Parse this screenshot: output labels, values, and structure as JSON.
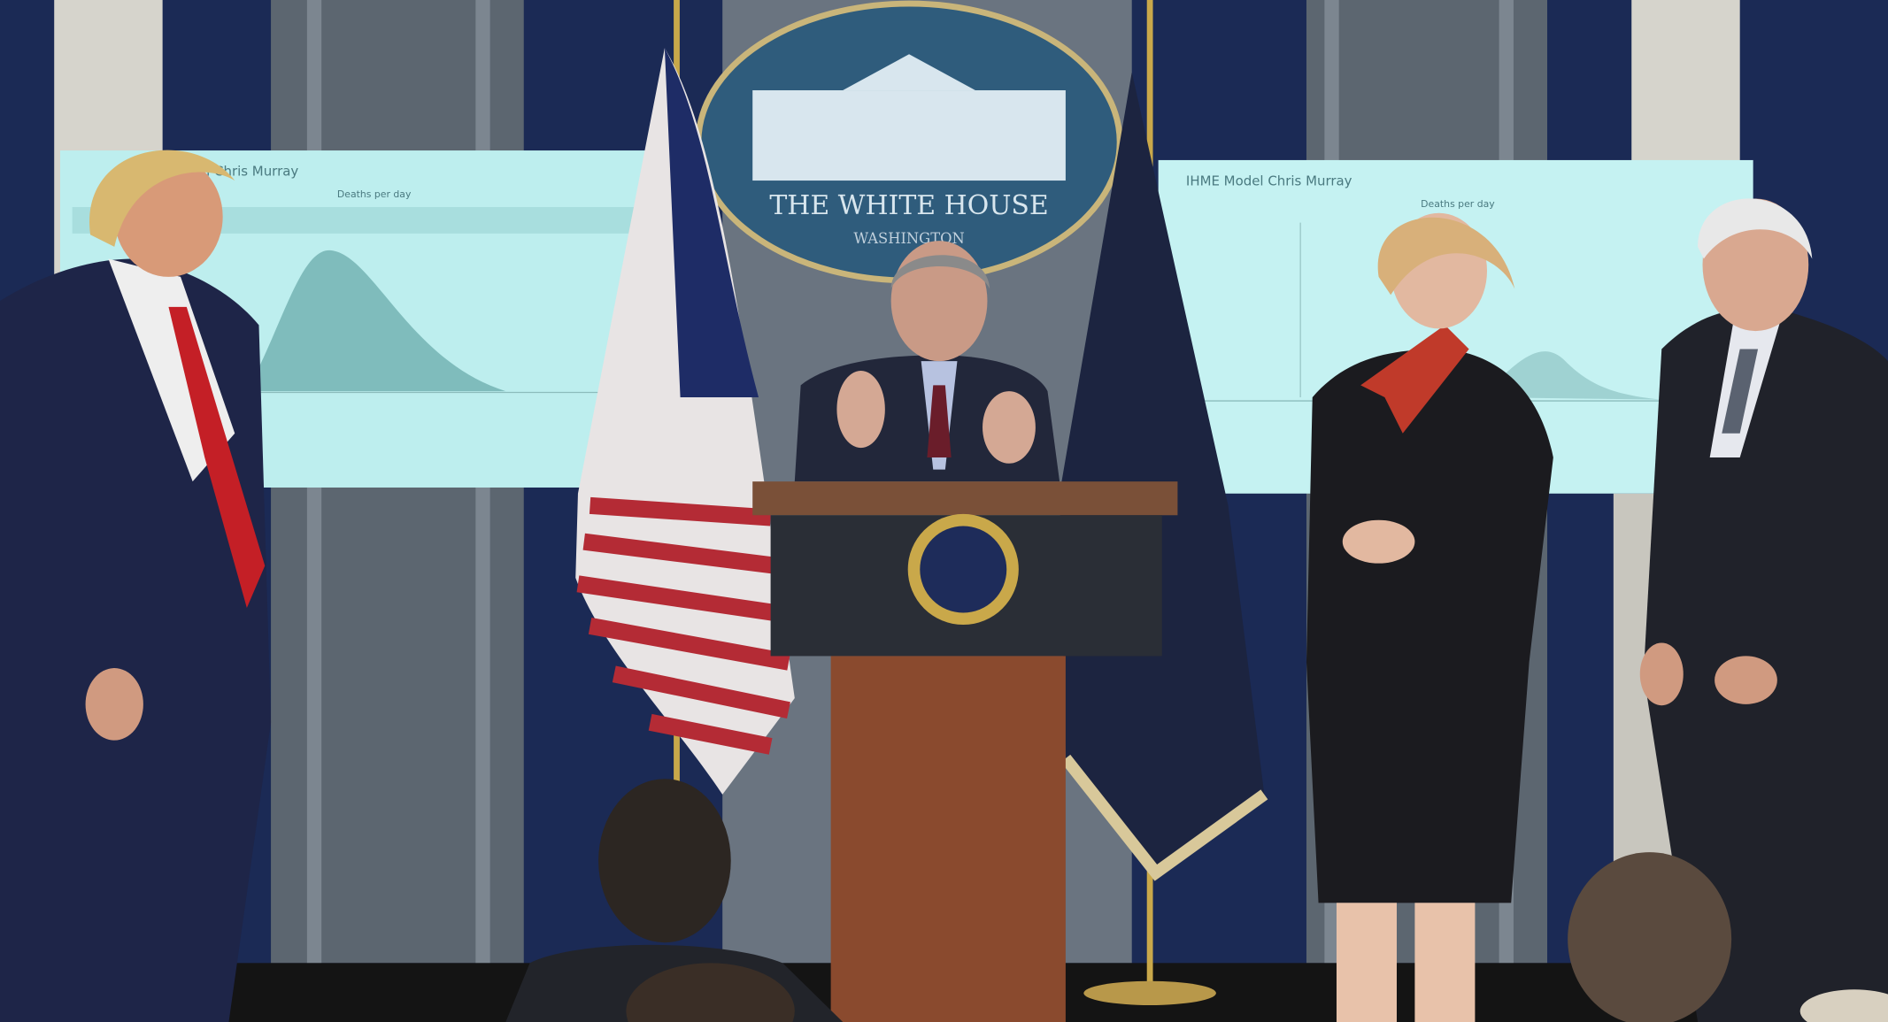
{
  "seal": {
    "line1": "THE WHITE HOUSE",
    "line2": "WASHINGTON"
  },
  "screens": [
    {
      "title": "IHME Model Chris Murray",
      "subtitle": "Deaths per day"
    },
    {
      "title": "IHME Model Chris Murray",
      "subtitle": "Deaths per day"
    }
  ]
}
